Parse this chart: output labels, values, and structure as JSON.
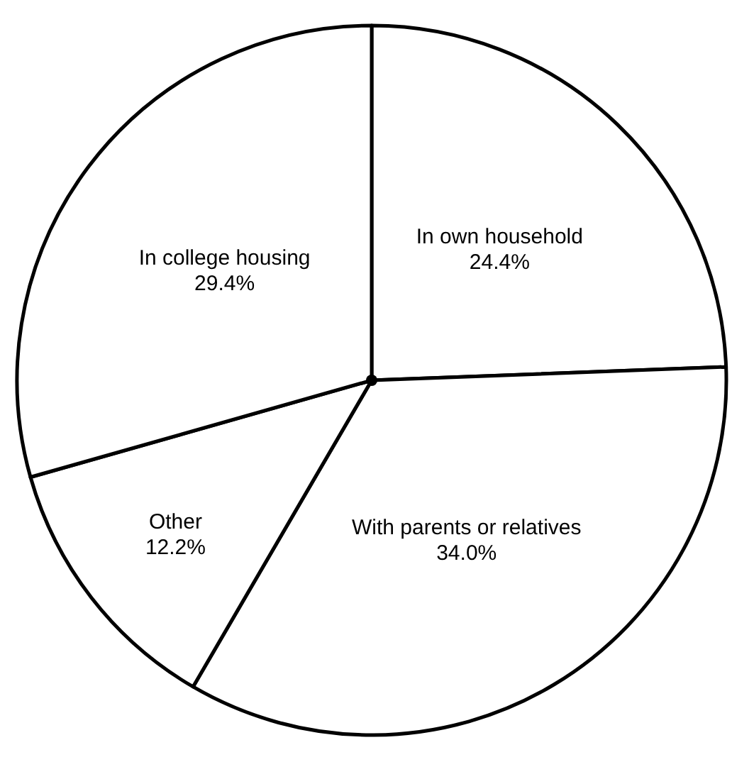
{
  "chart_data": {
    "type": "pie",
    "categories": [
      "In own household",
      "With parents or relatives",
      "Other",
      "In college housing"
    ],
    "values": [
      24.4,
      34.0,
      12.2,
      29.4
    ],
    "colors": [
      "#ffffff",
      "#ffffff",
      "#ffffff",
      "#ffffff"
    ],
    "value_labels": [
      "24.4%",
      "34.0%",
      "12.2%",
      "29.4%"
    ]
  }
}
